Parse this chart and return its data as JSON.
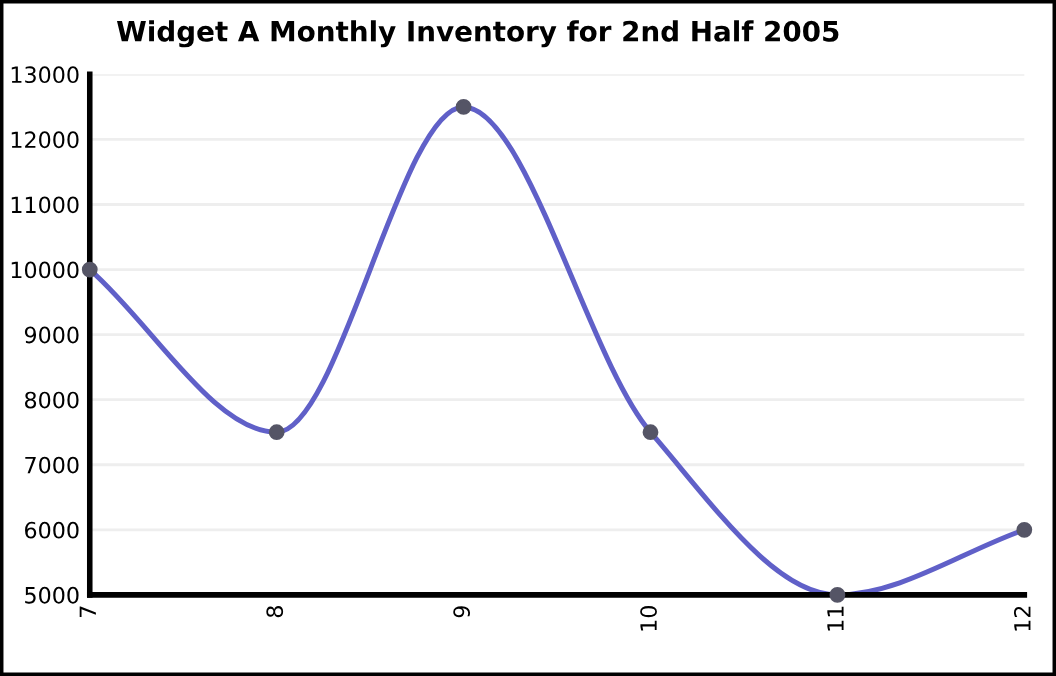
{
  "chart_data": {
    "type": "line",
    "title": "Widget A Monthly Inventory for 2nd Half 2005",
    "x": [
      7,
      8,
      9,
      10,
      11,
      12
    ],
    "series": [
      {
        "color": "#6060c8",
        "values": [
          10000,
          7500,
          12500,
          7500,
          5000,
          6000
        ]
      }
    ],
    "xlim": [
      7,
      12
    ],
    "xticks": [
      7,
      8,
      9,
      10,
      11,
      12
    ],
    "ylim": [
      5000,
      13000
    ],
    "yticks": [
      5000,
      6000,
      7000,
      8000,
      9000,
      10000,
      11000,
      12000,
      13000
    ],
    "grid": "y",
    "marker": "circle",
    "line_style": "solid"
  }
}
